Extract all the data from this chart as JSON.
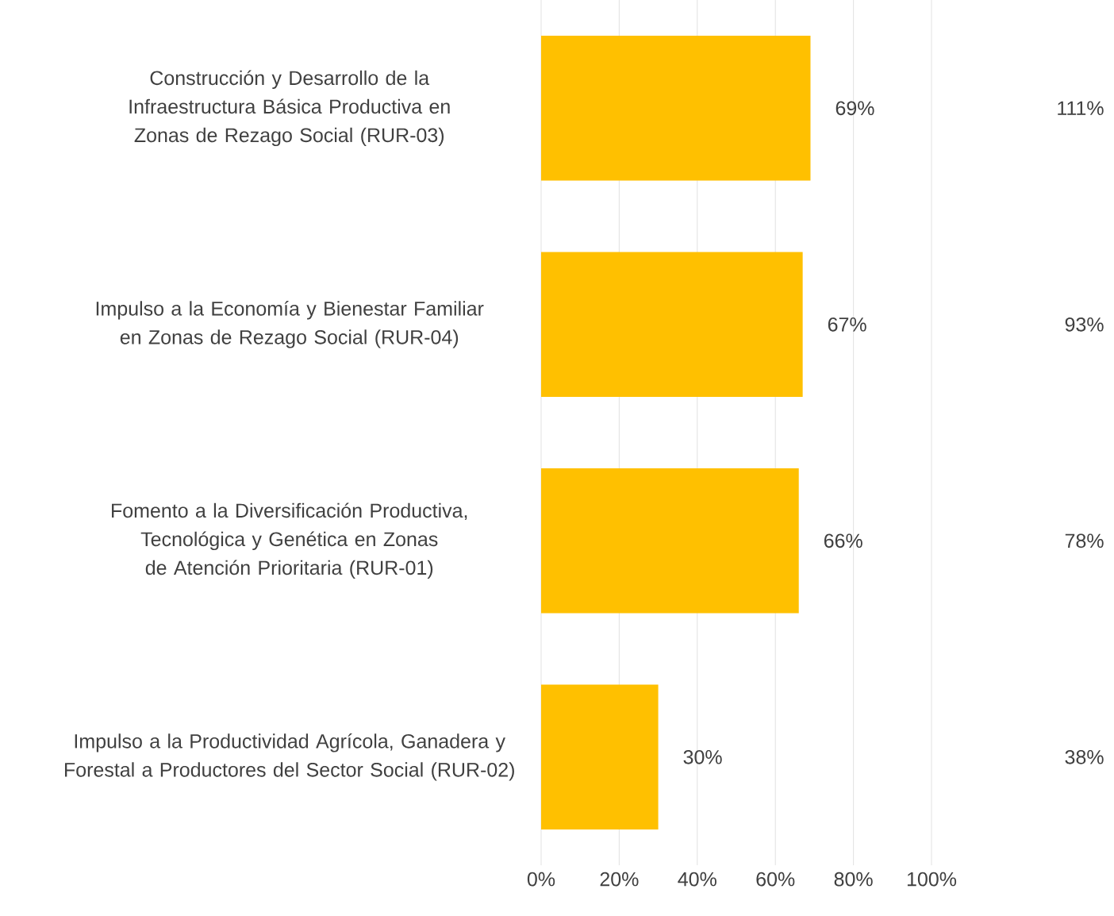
{
  "chart_data": {
    "type": "bar",
    "orientation": "horizontal",
    "categories": [
      "Construcción y Desarrollo de la Infraestructura Básica Productiva en Zonas de Rezago Social (RUR-03)",
      "Impulso a la Economía y Bienestar Familiar en Zonas de Rezago Social (RUR-04)",
      "Fomento a la Diversificación Productiva, Tecnológica y Genética en Zonas de Atención Prioritaria (RUR-01)",
      "Impulso a la Productividad Agrícola, Ganadera y Forestal a Productores del Sector Social (RUR-02)"
    ],
    "values": [
      69,
      67,
      66,
      30
    ],
    "value_labels": [
      "69%",
      "67%",
      "66%",
      "30%"
    ],
    "color": "#ffc000",
    "xlim": [
      0,
      100
    ],
    "xticks": [
      {
        "value": 0,
        "label": "0%"
      },
      {
        "value": 20,
        "label": "20%"
      },
      {
        "value": 40,
        "label": "40%"
      },
      {
        "value": 60,
        "label": "60%"
      },
      {
        "value": 80,
        "label": "80%"
      },
      {
        "value": 100,
        "label": "100%"
      }
    ],
    "grid": "x",
    "annotations": [
      "111%",
      "93%",
      "78%",
      "38%"
    ]
  }
}
